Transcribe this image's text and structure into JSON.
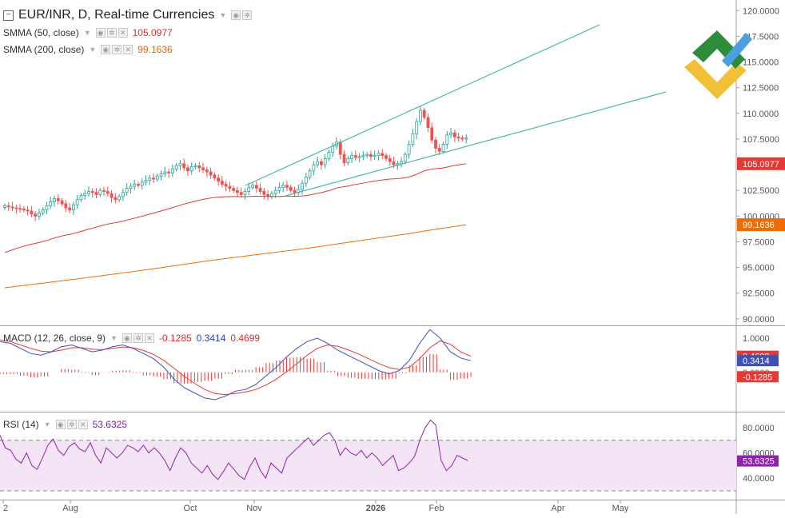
{
  "header": {
    "symbol_title": "EUR/INR, D, Real-time Currencies",
    "smma50_label": "SMMA (50, close)",
    "smma50_value": "105.0977",
    "smma200_label": "SMMA (200, close)",
    "smma200_value": "99.1636",
    "macd_label": "MACD (12, 26, close, 9)",
    "macd_hist_value": "-0.1285",
    "macd_macd_value": "0.3414",
    "macd_signal_value": "0.4699",
    "rsi_label": "RSI (14)",
    "rsi_value": "53.6325"
  },
  "colors": {
    "up": "#26a69a",
    "down": "#ef5350",
    "smma50": "#e53935",
    "smma200": "#ef6c00",
    "trend": "#4db6ac",
    "macd": "#3f51b5",
    "signal": "#e53935",
    "hist": "#e53935",
    "rsi_line": "#8e24aa",
    "rsi_band": "#f3e5f5",
    "axis_text": "#555555",
    "logo_green": "#2e8b3a",
    "logo_yellow": "#f2c037",
    "logo_blue": "#4a9fe0"
  },
  "chart_data": [
    {
      "type": "candlestick",
      "title": "EUR/INR, D, Real-time Currencies",
      "x_tick_labels": [
        "2",
        "Aug",
        "Oct",
        "Nov",
        "2026",
        "Feb",
        "Apr",
        "May"
      ],
      "y_tick_labels": [
        "120.0000",
        "117.5000",
        "115.0000",
        "112.5000",
        "110.0000",
        "107.5000",
        "105.0977",
        "102.5000",
        "100.0000",
        "99.1636",
        "97.5000",
        "95.0000",
        "92.5000",
        "90.0000"
      ],
      "ylim": [
        89.6,
        120.8
      ],
      "close": [
        101.0,
        100.9,
        100.8,
        100.75,
        100.7,
        100.6,
        100.5,
        100.2,
        100.0,
        100.3,
        100.6,
        101.0,
        101.4,
        101.7,
        101.5,
        101.2,
        100.8,
        100.6,
        101.1,
        101.6,
        102.0,
        102.2,
        102.4,
        102.3,
        102.1,
        102.5,
        102.4,
        102.2,
        101.8,
        101.6,
        101.9,
        102.3,
        102.7,
        102.9,
        103.1,
        103.0,
        103.3,
        103.5,
        103.7,
        103.6,
        103.9,
        104.1,
        104.3,
        104.2,
        104.6,
        104.9,
        105.1,
        104.7,
        104.4,
        104.8,
        104.9,
        104.7,
        104.5,
        104.3,
        104.0,
        103.7,
        103.4,
        103.1,
        102.9,
        102.7,
        102.5,
        102.3,
        102.1,
        102.4,
        102.8,
        103.0,
        102.7,
        102.4,
        102.1,
        101.9,
        102.2,
        102.5,
        102.8,
        103.0,
        102.8,
        102.5,
        102.3,
        102.6,
        103.2,
        103.8,
        104.4,
        105.0,
        105.3,
        105.0,
        105.6,
        106.2,
        106.8,
        107.2,
        106.0,
        105.2,
        105.6,
        105.9,
        105.7,
        105.8,
        105.9,
        106.0,
        105.8,
        105.9,
        106.1,
        105.9,
        105.6,
        105.3,
        105.0,
        105.1,
        105.3,
        106.0,
        107.0,
        108.0,
        109.2,
        110.3,
        109.6,
        108.6,
        107.4,
        106.6,
        106.3,
        107.0,
        107.9,
        108.1,
        107.7,
        107.6,
        107.5,
        107.6
      ],
      "series": [
        {
          "name": "SMMA (50, close)",
          "last_value": 105.0977
        },
        {
          "name": "SMMA (200, close)",
          "last_value": 99.1636
        }
      ]
    },
    {
      "type": "line",
      "title": "MACD (12, 26, close, 9)",
      "y_tick_labels": [
        "1.0000",
        "0.4699",
        "0.3414",
        "0.0000",
        "-0.1285"
      ],
      "ylim": [
        -1.15,
        1.35
      ],
      "series": [
        {
          "name": "MACD",
          "values": [
            0.9,
            0.85,
            0.7,
            0.55,
            0.5,
            0.6,
            0.75,
            0.8,
            0.7,
            0.6,
            0.65,
            0.75,
            0.8,
            0.7,
            0.55,
            0.4,
            0.15,
            -0.2,
            -0.45,
            -0.6,
            -0.75,
            -0.8,
            -0.7,
            -0.55,
            -0.5,
            -0.35,
            -0.1,
            0.15,
            0.45,
            0.7,
            0.9,
            1.0,
            0.85,
            0.65,
            0.5,
            0.35,
            0.2,
            0.05,
            -0.05,
            0.05,
            0.35,
            0.85,
            1.25,
            1.0,
            0.6,
            0.42,
            0.34
          ]
        },
        {
          "name": "Signal",
          "values": [
            0.95,
            0.9,
            0.8,
            0.7,
            0.62,
            0.6,
            0.65,
            0.72,
            0.72,
            0.68,
            0.66,
            0.7,
            0.74,
            0.72,
            0.64,
            0.52,
            0.35,
            0.12,
            -0.12,
            -0.32,
            -0.5,
            -0.62,
            -0.65,
            -0.62,
            -0.57,
            -0.5,
            -0.37,
            -0.2,
            0.02,
            0.25,
            0.5,
            0.7,
            0.8,
            0.76,
            0.66,
            0.54,
            0.4,
            0.26,
            0.14,
            0.08,
            0.15,
            0.4,
            0.72,
            0.92,
            0.82,
            0.6,
            0.47
          ]
        },
        {
          "name": "Histogram",
          "values": [
            -0.05,
            -0.05,
            -0.1,
            -0.15,
            -0.12,
            0.0,
            0.1,
            0.08,
            -0.02,
            -0.08,
            -0.01,
            0.05,
            0.06,
            -0.02,
            -0.09,
            -0.12,
            -0.2,
            -0.32,
            -0.33,
            -0.28,
            -0.25,
            -0.18,
            -0.05,
            0.07,
            0.07,
            0.15,
            0.27,
            0.35,
            0.43,
            0.45,
            0.4,
            0.3,
            0.05,
            -0.11,
            -0.16,
            -0.19,
            -0.2,
            -0.21,
            -0.19,
            -0.03,
            0.2,
            0.45,
            0.53,
            0.08,
            -0.22,
            -0.18,
            -0.13
          ]
        }
      ]
    },
    {
      "type": "line",
      "title": "RSI (14)",
      "y_tick_labels": [
        "80.0000",
        "60.0000",
        "53.6325",
        "40.0000"
      ],
      "ylim": [
        23.0,
        92.0
      ],
      "bands": [
        30,
        70
      ],
      "series": [
        {
          "name": "RSI",
          "values": [
            74,
            64,
            62,
            55,
            52,
            60,
            50,
            47,
            56,
            66,
            71,
            62,
            58,
            65,
            68,
            63,
            61,
            68,
            58,
            52,
            64,
            60,
            56,
            60,
            66,
            64,
            61,
            66,
            60,
            64,
            60,
            54,
            46,
            56,
            64,
            60,
            52,
            48,
            44,
            50,
            43,
            39,
            45,
            52,
            47,
            42,
            39,
            49,
            56,
            46,
            40,
            52,
            48,
            44,
            56,
            60,
            64,
            68,
            72,
            66,
            70,
            74,
            76,
            70,
            58,
            64,
            60,
            58,
            62,
            56,
            60,
            56,
            50,
            54,
            58,
            46,
            48,
            52,
            57,
            70,
            80,
            86,
            82,
            54,
            46,
            50,
            58,
            56,
            54
          ]
        }
      ]
    }
  ]
}
